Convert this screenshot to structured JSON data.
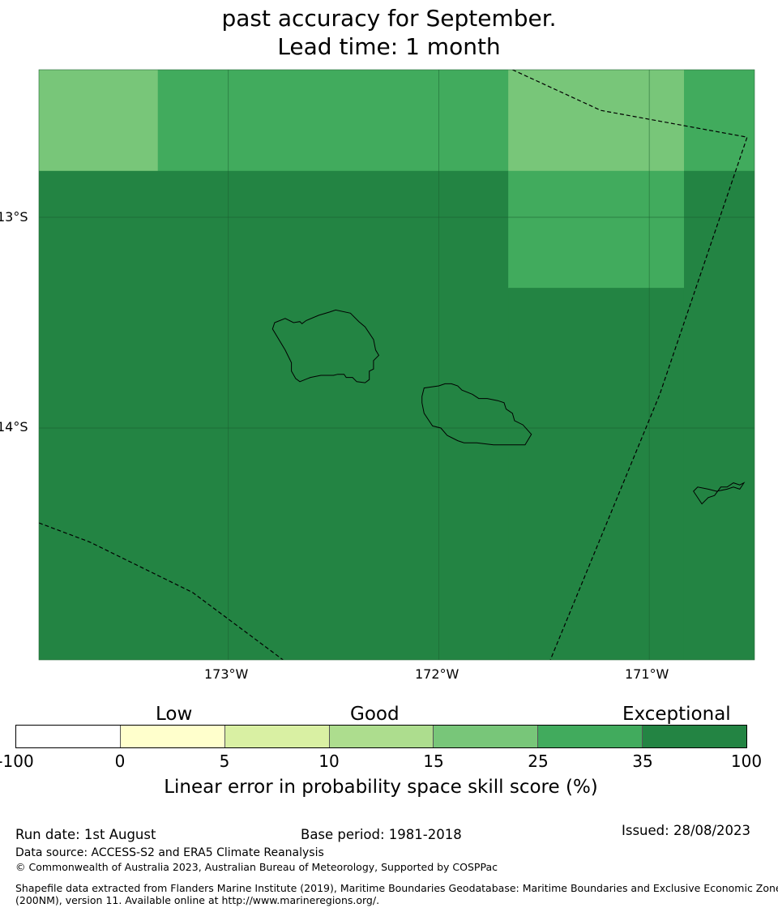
{
  "title": {
    "line2": "past accuracy for September.",
    "line3": "Lead time: 1 month"
  },
  "map": {
    "lat_labels": [
      "13°S",
      "14°S"
    ],
    "lon_labels": [
      "173°W",
      "172°W",
      "171°W"
    ],
    "lon_range": [
      -173.9,
      -170.5
    ],
    "lat_range": [
      -12.3,
      -15.1
    ],
    "cells": [
      {
        "lon": [
          -173.9,
          -173.335
        ],
        "lat": [
          -12.3,
          -12.78
        ],
        "level": 25
      },
      {
        "lon": [
          -173.335,
          -171.67
        ],
        "lat": [
          -12.3,
          -12.78
        ],
        "level": 35
      },
      {
        "lon": [
          -171.67,
          -170.835
        ],
        "lat": [
          -12.3,
          -12.78
        ],
        "level": 25
      },
      {
        "lon": [
          -170.835,
          -170.5
        ],
        "lat": [
          -12.3,
          -12.78
        ],
        "level": 35
      },
      {
        "lon": [
          -173.9,
          -171.67
        ],
        "lat": [
          -12.78,
          -15.1
        ],
        "level": 100
      },
      {
        "lon": [
          -171.67,
          -170.835
        ],
        "lat": [
          -12.78,
          -13.335
        ],
        "level": 35
      },
      {
        "lon": [
          -171.67,
          -170.835
        ],
        "lat": [
          -13.335,
          -15.1
        ],
        "level": 100
      },
      {
        "lon": [
          -170.835,
          -170.5
        ],
        "lat": [
          -12.78,
          -15.1
        ],
        "level": 100
      }
    ],
    "boundaries": [
      [
        [
          -171.65,
          -12.3
        ],
        [
          -171.23,
          -12.493
        ],
        [
          -170.535,
          -12.62
        ],
        [
          -170.95,
          -13.84
        ],
        [
          -171.47,
          -15.1
        ]
      ],
      [
        [
          -173.9,
          -14.45
        ],
        [
          -173.66,
          -14.54
        ],
        [
          -173.17,
          -14.78
        ],
        [
          -172.74,
          -15.1
        ]
      ]
    ],
    "islands": [
      [
        [
          -172.78,
          -13.5
        ],
        [
          -172.73,
          -13.48
        ],
        [
          -172.69,
          -13.5
        ],
        [
          -172.66,
          -13.495
        ],
        [
          -172.65,
          -13.505
        ],
        [
          -172.63,
          -13.49
        ],
        [
          -172.57,
          -13.465
        ],
        [
          -172.52,
          -13.45
        ],
        [
          -172.49,
          -13.44
        ],
        [
          -172.42,
          -13.455
        ],
        [
          -172.38,
          -13.495
        ],
        [
          -172.35,
          -13.52
        ],
        [
          -172.31,
          -13.58
        ],
        [
          -172.3,
          -13.63
        ],
        [
          -172.285,
          -13.655
        ],
        [
          -172.31,
          -13.68
        ],
        [
          -172.31,
          -13.72
        ],
        [
          -172.33,
          -13.73
        ],
        [
          -172.33,
          -13.77
        ],
        [
          -172.35,
          -13.785
        ],
        [
          -172.39,
          -13.78
        ],
        [
          -172.41,
          -13.76
        ],
        [
          -172.44,
          -13.76
        ],
        [
          -172.45,
          -13.745
        ],
        [
          -172.48,
          -13.745
        ],
        [
          -172.5,
          -13.75
        ],
        [
          -172.56,
          -13.75
        ],
        [
          -172.61,
          -13.76
        ],
        [
          -172.66,
          -13.78
        ],
        [
          -172.68,
          -13.765
        ],
        [
          -172.7,
          -13.73
        ],
        [
          -172.7,
          -13.69
        ],
        [
          -172.73,
          -13.63
        ],
        [
          -172.79,
          -13.53
        ],
        [
          -172.78,
          -13.5
        ]
      ],
      [
        [
          -172.08,
          -13.85
        ],
        [
          -172.07,
          -13.81
        ],
        [
          -172.0,
          -13.8
        ],
        [
          -171.97,
          -13.79
        ],
        [
          -171.94,
          -13.79
        ],
        [
          -171.91,
          -13.8
        ],
        [
          -171.89,
          -13.82
        ],
        [
          -171.84,
          -13.84
        ],
        [
          -171.81,
          -13.86
        ],
        [
          -171.77,
          -13.86
        ],
        [
          -171.72,
          -13.87
        ],
        [
          -171.69,
          -13.88
        ],
        [
          -171.68,
          -13.91
        ],
        [
          -171.65,
          -13.93
        ],
        [
          -171.64,
          -13.965
        ],
        [
          -171.6,
          -13.985
        ],
        [
          -171.56,
          -14.03
        ],
        [
          -171.59,
          -14.08
        ],
        [
          -171.64,
          -14.08
        ],
        [
          -171.74,
          -14.08
        ],
        [
          -171.82,
          -14.07
        ],
        [
          -171.88,
          -14.07
        ],
        [
          -171.91,
          -14.06
        ],
        [
          -171.96,
          -14.035
        ],
        [
          -171.99,
          -14.0
        ],
        [
          -172.03,
          -13.99
        ],
        [
          -172.05,
          -13.96
        ],
        [
          -172.07,
          -13.93
        ],
        [
          -172.08,
          -13.88
        ],
        [
          -172.08,
          -13.85
        ]
      ],
      [
        [
          -170.68,
          -14.3
        ],
        [
          -170.72,
          -14.29
        ],
        [
          -170.77,
          -14.28
        ],
        [
          -170.79,
          -14.3
        ],
        [
          -170.75,
          -14.36
        ],
        [
          -170.72,
          -14.33
        ],
        [
          -170.69,
          -14.32
        ],
        [
          -170.66,
          -14.28
        ],
        [
          -170.63,
          -14.28
        ],
        [
          -170.6,
          -14.26
        ],
        [
          -170.57,
          -14.27
        ],
        [
          -170.55,
          -14.26
        ],
        [
          -170.57,
          -14.29
        ],
        [
          -170.6,
          -14.28
        ],
        [
          -170.63,
          -14.29
        ],
        [
          -170.68,
          -14.3
        ]
      ]
    ]
  },
  "colorbar": {
    "categories": [
      "Low",
      "Good",
      "Exceptional"
    ],
    "ticks": [
      "-100",
      "0",
      "5",
      "10",
      "15",
      "25",
      "35",
      "100"
    ],
    "colors": [
      "#ffffff",
      "#ffffcc",
      "#d9f0a3",
      "#addd8e",
      "#78c679",
      "#41ab5d",
      "#238443"
    ],
    "levels": [
      0,
      5,
      10,
      15,
      25,
      35,
      100
    ],
    "label": "Linear error in probability space skill score (%)"
  },
  "footer": {
    "run_date": "Run date: 1st August",
    "base_period": "Base period: 1981-2018",
    "issued": "Issued: 28/08/2023",
    "data_source": "Data source: ACCESS-S2 and ERA5 Climate Reanalysis",
    "copyright": "© Commonwealth of Australia 2023, Australian Bureau of Meteorology, Supported by COSPPac",
    "shapefile_1": "Shapefile data extracted from Flanders Marine Institute (2019), Maritime Boundaries Geodatabase: Maritime Boundaries and Exclusive Economic Zones",
    "shapefile_2": "(200NM), version 11. Available online at http://www.marineregions.org/."
  }
}
